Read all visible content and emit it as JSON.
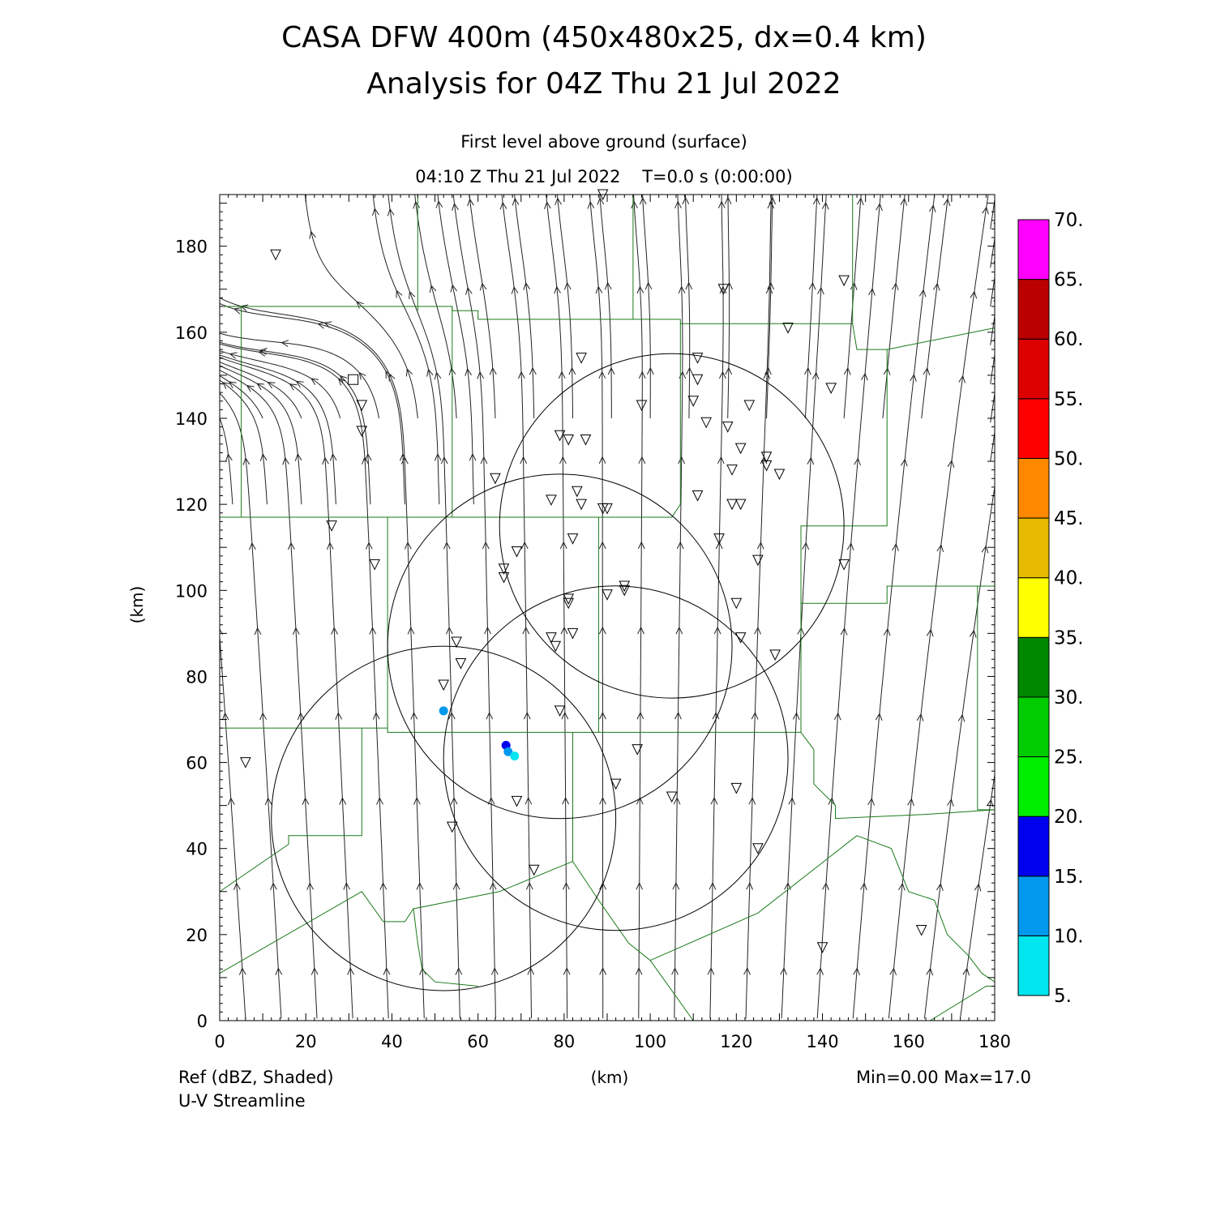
{
  "title": {
    "line1": "CASA DFW 400m (450x480x25, dx=0.4 km)",
    "line2": "Analysis for 04Z Thu 21 Jul 2022"
  },
  "subtitle": {
    "level": "First level above ground (surface)",
    "time": "04:10 Z Thu 21 Jul 2022    T=0.0 s (0:00:00)"
  },
  "axes": {
    "xlabel": "(km)",
    "ylabel": "(km)",
    "xlim": [
      0,
      180
    ],
    "ylim": [
      0,
      192
    ],
    "xticks": [
      "0",
      "20",
      "40",
      "60",
      "80",
      "100",
      "120",
      "140",
      "160",
      "180"
    ],
    "yticks": [
      "0",
      "20",
      "40",
      "60",
      "80",
      "100",
      "120",
      "140",
      "160",
      "180"
    ]
  },
  "footer": {
    "field1": "Ref (dBZ, Shaded)",
    "field2": "U-V Streamline",
    "minmax": "Min=0.00 Max=17.0"
  },
  "colorbar": {
    "labels": [
      "5.",
      "10.",
      "15.",
      "20.",
      "25.",
      "30.",
      "35.",
      "40.",
      "45.",
      "50.",
      "55.",
      "60.",
      "65.",
      "70."
    ],
    "colors": [
      "#00e5ee",
      "#0099ee",
      "#0000ee",
      "#00ee00",
      "#00cc00",
      "#008800",
      "#ffff00",
      "#e6bb00",
      "#ff8800",
      "#ff0000",
      "#dd0000",
      "#bb0000",
      "#ff00ff"
    ]
  },
  "map": {
    "radars": [
      {
        "name": "radar-1",
        "x": 79,
        "y": 87,
        "r": 40
      },
      {
        "name": "radar-2",
        "x": 105,
        "y": 115,
        "r": 40
      },
      {
        "name": "radar-3",
        "x": 52,
        "y": 47,
        "r": 40
      },
      {
        "name": "radar-4",
        "x": 92,
        "y": 61,
        "r": 40
      }
    ],
    "echoes": [
      {
        "x": 52,
        "y": 72,
        "dbz": 12
      },
      {
        "x": 66.5,
        "y": 64,
        "dbz": 17
      },
      {
        "x": 67,
        "y": 62.5,
        "dbz": 11
      },
      {
        "x": 68.5,
        "y": 61.5,
        "dbz": 8
      }
    ],
    "stations": [
      [
        89,
        192
      ],
      [
        13,
        178
      ],
      [
        117,
        170
      ],
      [
        145,
        172
      ],
      [
        132,
        161
      ],
      [
        84,
        154
      ],
      [
        111,
        154
      ],
      [
        111,
        149
      ],
      [
        33,
        143
      ],
      [
        110,
        144
      ],
      [
        123,
        143
      ],
      [
        33,
        137
      ],
      [
        98,
        143
      ],
      [
        142,
        147
      ],
      [
        113,
        139
      ],
      [
        118,
        138
      ],
      [
        79,
        136
      ],
      [
        81,
        135
      ],
      [
        85,
        135
      ],
      [
        121,
        133
      ],
      [
        127,
        131
      ],
      [
        127,
        129
      ],
      [
        130,
        127
      ],
      [
        64,
        126
      ],
      [
        119,
        128
      ],
      [
        77,
        121
      ],
      [
        83,
        123
      ],
      [
        84,
        120
      ],
      [
        89,
        119
      ],
      [
        90,
        119
      ],
      [
        111,
        122
      ],
      [
        119,
        120
      ],
      [
        121,
        120
      ],
      [
        26,
        115
      ],
      [
        36,
        106
      ],
      [
        66,
        105
      ],
      [
        66,
        103
      ],
      [
        69,
        109
      ],
      [
        82,
        112
      ],
      [
        116,
        112
      ],
      [
        125,
        107
      ],
      [
        145,
        106
      ],
      [
        94,
        101
      ],
      [
        94,
        100
      ],
      [
        90,
        99
      ],
      [
        81,
        98
      ],
      [
        81,
        97
      ],
      [
        120,
        97
      ],
      [
        55,
        88
      ],
      [
        56,
        83
      ],
      [
        77,
        89
      ],
      [
        78,
        87
      ],
      [
        82,
        90
      ],
      [
        121,
        89
      ],
      [
        129,
        85
      ],
      [
        52,
        78
      ],
      [
        79,
        72
      ],
      [
        97,
        63
      ],
      [
        6,
        60
      ],
      [
        69,
        51
      ],
      [
        92,
        55
      ],
      [
        105,
        52
      ],
      [
        120,
        54
      ],
      [
        54,
        45
      ],
      [
        125,
        40
      ],
      [
        73,
        35
      ],
      [
        140,
        17
      ],
      [
        163,
        21
      ]
    ],
    "square_station": [
      31,
      149
    ]
  }
}
